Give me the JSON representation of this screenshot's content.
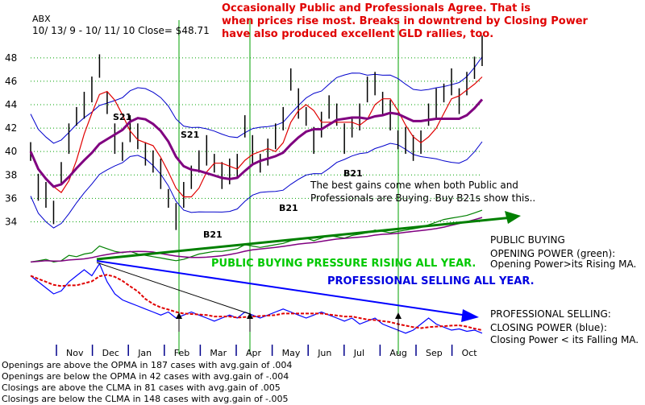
{
  "header": {
    "ticker": "ABX",
    "range_close": "10/ 13/ 9  -  10/ 11/ 10   Close= $48.71"
  },
  "annotations": {
    "top_red": [
      "Occasionally Public and Professionals Agree.  That is",
      "when prices rise most.  Breaks in downtrend by Closing Power",
      "have also produced excellent GLD rallies, too."
    ],
    "best_gains": [
      "The best gains come when both Public and",
      "Professionals are Buying.  Buy B21s show this.."
    ],
    "public_rising": "PUBLIC BUYING PRESSURE RISING ALL YEAR.",
    "prof_selling": "PROFESSIONAL SELLING ALL YEAR.",
    "public_buying_title": "PUBLIC BUYING",
    "opening_power_1": "OPENING POWER (green):",
    "opening_power_2": "Opening Power>its Rising MA.",
    "prof_selling_title": "PROFESSIONAL SELLING:",
    "closing_power_1": "CLOSING POWER (blue):",
    "closing_power_2": "Closing Power < its Falling MA.",
    "signals": [
      {
        "label": "S21",
        "x": 14
      },
      {
        "label": "S21",
        "x": 81
      },
      {
        "label": "B21",
        "x": 140
      },
      {
        "label": "B21",
        "x": 77
      },
      {
        "label": "B21",
        "x": 208
      }
    ]
  },
  "stats": [
    "Openings are above the OPMA in  187 cases with avg.gain of  .004",
    "Openings are below the OPMA in   42 cases with avg.gain of -.004",
    "Closings are above the CLMA in   81 cases with avg.gain of  .005",
    "Closings are below the CLMA in  148 cases with avg.gain of -.005"
  ],
  "colors": {
    "price_bars": "#000000",
    "bollinger": "#0000cc",
    "short_ma": "#e00000",
    "long_ma": "#800080",
    "opening_power": "#008000",
    "closing_power": "#0000ff",
    "gridline": "#00a000",
    "annotation_red": "#e00000",
    "annotation_green": "#00c800",
    "annotation_blue": "#0000e0"
  },
  "chart_data": {
    "type": "line",
    "title": "ABX",
    "ylim": [
      33,
      49.5
    ],
    "yticks": [
      34,
      36,
      38,
      40,
      42,
      44,
      46,
      48
    ],
    "months": [
      "Nov",
      "Dec",
      "Jan",
      "Feb",
      "Mar",
      "Apr",
      "May",
      "Jun",
      "Jul",
      "Aug",
      "Sep",
      "Oct"
    ],
    "price_close": [
      40,
      37,
      36,
      35,
      38,
      41,
      43,
      44,
      45,
      47.5,
      44,
      41,
      40,
      42,
      41,
      40,
      39,
      38,
      36,
      34.5,
      36,
      38,
      39,
      40,
      39,
      38,
      38,
      39,
      42,
      40,
      39,
      40,
      41,
      43,
      46,
      44,
      43,
      41,
      42,
      44,
      43,
      41,
      42,
      43,
      45,
      46,
      44,
      43,
      41,
      41,
      40,
      41,
      43,
      44,
      45,
      46,
      44,
      46,
      47,
      48.5
    ],
    "series": [
      {
        "name": "OPENING POWER (green)",
        "values": [
          0.2,
          0.25,
          0.3,
          0.2,
          0.25,
          0.45,
          0.4,
          0.5,
          0.55,
          0.8,
          0.7,
          0.6,
          0.55,
          0.6,
          0.5,
          0.45,
          0.4,
          0.35,
          0.3,
          0.25,
          0.3,
          0.4,
          0.5,
          0.55,
          0.6,
          0.6,
          0.65,
          0.7,
          0.85,
          0.8,
          0.75,
          0.8,
          0.85,
          0.9,
          1.0,
          1.05,
          1.1,
          1.0,
          1.1,
          1.2,
          1.15,
          1.1,
          1.2,
          1.25,
          1.3,
          1.4,
          1.35,
          1.3,
          1.35,
          1.4,
          1.45,
          1.5,
          1.6,
          1.7,
          1.8,
          1.85,
          1.9,
          1.95,
          2.05,
          2.15
        ]
      },
      {
        "name": "CLOSING POWER (blue)",
        "values": [
          0.1,
          0.0,
          -0.1,
          -0.2,
          -0.15,
          0.0,
          0.1,
          0.2,
          0.1,
          0.3,
          0.0,
          -0.2,
          -0.3,
          -0.35,
          -0.4,
          -0.45,
          -0.5,
          -0.55,
          -0.5,
          -0.6,
          -0.55,
          -0.5,
          -0.55,
          -0.6,
          -0.65,
          -0.6,
          -0.55,
          -0.6,
          -0.5,
          -0.55,
          -0.6,
          -0.55,
          -0.5,
          -0.45,
          -0.5,
          -0.55,
          -0.6,
          -0.55,
          -0.5,
          -0.55,
          -0.6,
          -0.65,
          -0.6,
          -0.7,
          -0.65,
          -0.6,
          -0.7,
          -0.75,
          -0.8,
          -0.85,
          -0.8,
          -0.7,
          -0.6,
          -0.7,
          -0.75,
          -0.8,
          -0.78,
          -0.82,
          -0.8,
          -0.85
        ]
      }
    ]
  }
}
